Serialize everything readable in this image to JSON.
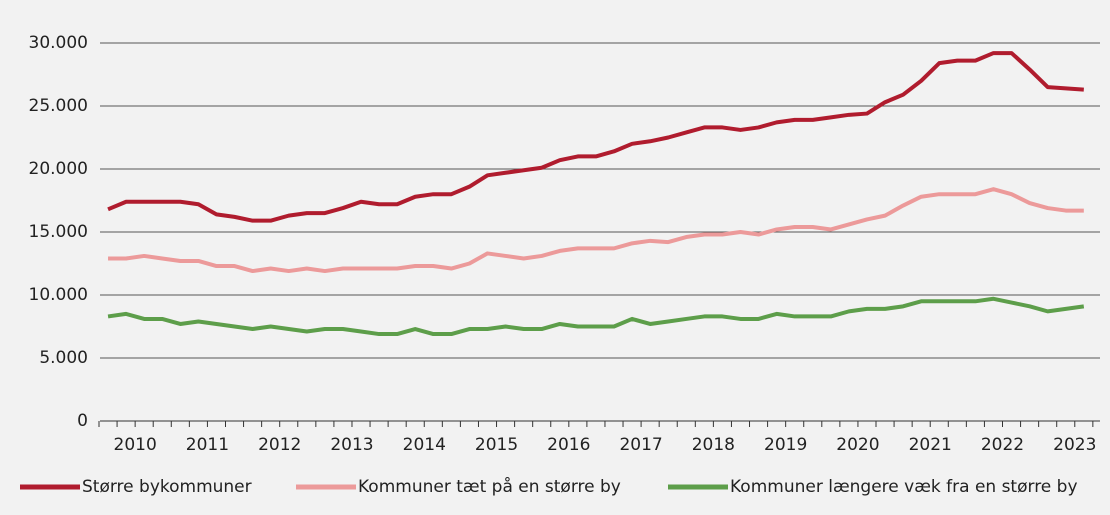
{
  "chart_data": {
    "type": "line",
    "categories": [
      null,
      "2010",
      null,
      null,
      null,
      "2011",
      null,
      null,
      null,
      "2012",
      null,
      null,
      null,
      "2013",
      null,
      null,
      null,
      "2014",
      null,
      null,
      null,
      "2015",
      null,
      null,
      null,
      "2016",
      null,
      null,
      null,
      "2017",
      null,
      null,
      null,
      "2018",
      null,
      null,
      null,
      "2019",
      null,
      null,
      null,
      "2020",
      null,
      null,
      null,
      "2021",
      null,
      null,
      null,
      "2022",
      null,
      null,
      null,
      "2023",
      null
    ],
    "series": [
      {
        "name": "Større bykommuner",
        "color": "#b01c2e",
        "values": [
          16800,
          17400,
          17400,
          17400,
          17400,
          17200,
          16400,
          16200,
          15900,
          15900,
          16300,
          16500,
          16500,
          16900,
          17400,
          17200,
          17200,
          17800,
          18000,
          18000,
          18600,
          19500,
          19700,
          19900,
          20100,
          20700,
          21000,
          21000,
          21400,
          22000,
          22200,
          22500,
          22900,
          23300,
          23300,
          23100,
          23300,
          23700,
          23900,
          23900,
          24100,
          24300,
          24400,
          25300,
          25900,
          27000,
          28400,
          28600,
          28600,
          29200,
          29200,
          27900,
          26500,
          26400,
          26300
        ]
      },
      {
        "name": "Kommuner tæt på en større by",
        "color": "#ec9a9a",
        "values": [
          12900,
          12900,
          13100,
          12900,
          12700,
          12700,
          12300,
          12300,
          11900,
          12100,
          11900,
          12100,
          11900,
          12100,
          12100,
          12100,
          12100,
          12300,
          12300,
          12100,
          12500,
          13300,
          13100,
          12900,
          13100,
          13500,
          13700,
          13700,
          13700,
          14100,
          14300,
          14200,
          14600,
          14800,
          14800,
          15000,
          14800,
          15200,
          15400,
          15400,
          15200,
          15600,
          16000,
          16300,
          17100,
          17800,
          18000,
          18000,
          18000,
          18400,
          18000,
          17300,
          16900,
          16700,
          16700
        ]
      },
      {
        "name": "Kommuner længere væk fra en større by",
        "color": "#5d9e4a",
        "values": [
          8300,
          8500,
          8100,
          8100,
          7700,
          7900,
          7700,
          7500,
          7300,
          7500,
          7300,
          7100,
          7300,
          7300,
          7100,
          6900,
          6900,
          7300,
          6900,
          6900,
          7300,
          7300,
          7500,
          7300,
          7300,
          7700,
          7500,
          7500,
          7500,
          8100,
          7700,
          7900,
          8100,
          8300,
          8300,
          8100,
          8100,
          8500,
          8300,
          8300,
          8300,
          8700,
          8900,
          8900,
          9100,
          9500,
          9500,
          9500,
          9500,
          9700,
          9400,
          9100,
          8700,
          8900,
          9100
        ]
      }
    ],
    "ylim": [
      0,
      30000
    ],
    "yticks": [
      0,
      {
        "value": 5000,
        "label": "5.000"
      },
      {
        "value": 10000,
        "label": "10.000"
      },
      {
        "value": 15000,
        "label": "15.000"
      },
      {
        "value": 20000,
        "label": "20.000"
      },
      {
        "value": 25000,
        "label": "25.000"
      },
      {
        "value": 30000,
        "label": "30.000"
      }
    ],
    "grid": true
  }
}
